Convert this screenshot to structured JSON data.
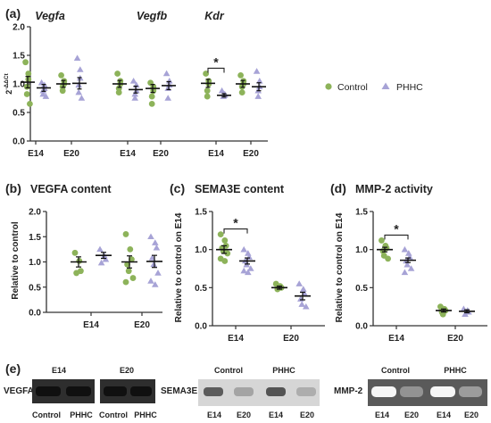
{
  "colors": {
    "control": "#8db35a",
    "phhc": "#a7a3d6",
    "axis": "#222222",
    "bar": "#000000"
  },
  "panel_labels": {
    "a": "(a)",
    "b": "(b)",
    "c": "(c)",
    "d": "(d)",
    "e": "(e)"
  },
  "legend": {
    "control": "Control",
    "phhc": "PHHC"
  },
  "chart_data": [
    {
      "id": "a",
      "type": "scatter",
      "gene_labels": [
        "Vegfa",
        "Vegfb",
        "Kdr"
      ],
      "ylabel": "2^-ΔΔCt",
      "ylabel_base": "2",
      "ylabel_sup": "-ΔΔCt",
      "ylim": [
        0,
        2.0
      ],
      "yticks": [
        "0.0",
        "0.5",
        "1.0",
        "1.5",
        "2.0"
      ],
      "categories": [
        "E14",
        "E20",
        "E14",
        "E20",
        "E14",
        "E20"
      ],
      "significance": [
        {
          "category": 4,
          "label": "*"
        }
      ],
      "series": [
        {
          "name": "Control",
          "color": "#8db35a",
          "marker": "circle",
          "values": [
            [
              1.38,
              1.18,
              1.08,
              0.95,
              0.82,
              0.65
            ],
            [
              1.15,
              1.05,
              1.0,
              0.95,
              0.88
            ],
            [
              1.18,
              1.05,
              1.0,
              0.92,
              0.85
            ],
            [
              1.02,
              0.95,
              0.88,
              0.78,
              0.65
            ],
            [
              1.18,
              1.05,
              1.0,
              0.88,
              0.78
            ],
            [
              1.15,
              1.05,
              1.0,
              0.95,
              0.85
            ]
          ],
          "mean": [
            1.03,
            1.0,
            1.0,
            0.92,
            1.01,
            1.0
          ],
          "sem": [
            0.1,
            0.06,
            0.06,
            0.07,
            0.07,
            0.06
          ]
        },
        {
          "name": "PHHC",
          "color": "#a7a3d6",
          "marker": "triangle",
          "values": [
            [
              1.02,
              0.98,
              0.92,
              0.88,
              0.82,
              0.78
            ],
            [
              1.45,
              1.25,
              1.1,
              0.98,
              0.85,
              0.75
            ],
            [
              1.05,
              0.98,
              0.88,
              0.82,
              0.75
            ],
            [
              1.18,
              1.05,
              0.98,
              0.92,
              0.75
            ],
            [
              0.88,
              0.82,
              0.8,
              0.78
            ],
            [
              1.22,
              1.05,
              0.95,
              0.88,
              0.78
            ]
          ],
          "mean": [
            0.93,
            1.01,
            0.9,
            0.97,
            0.8,
            0.95
          ],
          "sem": [
            0.06,
            0.1,
            0.06,
            0.07,
            0.03,
            0.07
          ]
        }
      ]
    },
    {
      "id": "b",
      "type": "scatter",
      "title": "VEGFA content",
      "ylabel": "Relative to control",
      "ylim": [
        0,
        2.0
      ],
      "yticks": [
        "0.0",
        "0.5",
        "1.0",
        "1.5",
        "2.0"
      ],
      "categories": [
        "E14",
        "E20"
      ],
      "series": [
        {
          "name": "Control",
          "color": "#8db35a",
          "marker": "circle",
          "values": [
            [
              1.18,
              1.02,
              0.82,
              0.78
            ],
            [
              1.55,
              1.25,
              1.05,
              0.95,
              0.82,
              0.68,
              0.6
            ]
          ],
          "mean": [
            1.0,
            1.0
          ],
          "sem": [
            0.1,
            0.12
          ]
        },
        {
          "name": "PHHC",
          "color": "#a7a3d6",
          "marker": "triangle",
          "values": [
            [
              1.25,
              1.12,
              1.05,
              0.98
            ],
            [
              1.5,
              1.38,
              1.28,
              1.08,
              0.95,
              0.78,
              0.62,
              0.55
            ]
          ],
          "mean": [
            1.13,
            1.01
          ],
          "sem": [
            0.06,
            0.12
          ]
        }
      ]
    },
    {
      "id": "c",
      "type": "scatter",
      "title": "SEMA3E content",
      "ylabel": "Relative to control on E14",
      "ylim": [
        0,
        1.5
      ],
      "yticks": [
        "0.0",
        "0.5",
        "1.0",
        "1.5"
      ],
      "categories": [
        "E14",
        "E20"
      ],
      "significance": [
        {
          "category": 0,
          "label": "*"
        }
      ],
      "series": [
        {
          "name": "Control",
          "color": "#8db35a",
          "marker": "circle",
          "values": [
            [
              1.2,
              1.12,
              1.05,
              1.02,
              0.98,
              0.95,
              0.88,
              0.85
            ],
            [
              0.55,
              0.52,
              0.5,
              0.48
            ]
          ],
          "mean": [
            1.0,
            0.5
          ],
          "sem": [
            0.05,
            0.02
          ]
        },
        {
          "name": "PHHC",
          "color": "#a7a3d6",
          "marker": "triangle",
          "values": [
            [
              1.0,
              0.95,
              0.9,
              0.85,
              0.8,
              0.75,
              0.72,
              0.7
            ],
            [
              0.55,
              0.48,
              0.42,
              0.35,
              0.28,
              0.25
            ]
          ],
          "mean": [
            0.85,
            0.39
          ],
          "sem": [
            0.04,
            0.05
          ]
        }
      ]
    },
    {
      "id": "d",
      "type": "scatter",
      "title": "MMP-2 activity",
      "ylabel": "Relative to control on E14",
      "ylim": [
        0,
        1.5
      ],
      "yticks": [
        "0.0",
        "0.5",
        "1.0",
        "1.5"
      ],
      "categories": [
        "E14",
        "E20"
      ],
      "significance": [
        {
          "category": 0,
          "label": "*"
        }
      ],
      "series": [
        {
          "name": "Control",
          "color": "#8db35a",
          "marker": "circle",
          "values": [
            [
              1.12,
              1.05,
              1.02,
              0.98,
              0.92,
              0.88
            ],
            [
              0.25,
              0.22,
              0.2,
              0.18,
              0.15
            ]
          ],
          "mean": [
            1.0,
            0.2
          ],
          "sem": [
            0.03,
            0.02
          ]
        },
        {
          "name": "PHHC",
          "color": "#a7a3d6",
          "marker": "triangle",
          "values": [
            [
              1.0,
              0.95,
              0.9,
              0.85,
              0.8,
              0.75,
              0.7
            ],
            [
              0.22,
              0.2,
              0.18,
              0.15
            ]
          ],
          "mean": [
            0.86,
            0.19
          ],
          "sem": [
            0.03,
            0.02
          ]
        }
      ]
    }
  ],
  "blots": {
    "b1": {
      "label": "VEGFA",
      "headers": [
        "E14",
        "E20"
      ],
      "lanes": [
        "Control",
        "PHHC",
        "Control",
        "PHHC"
      ]
    },
    "b2": {
      "label": "SEMA3E",
      "headers": [
        "Control",
        "PHHC"
      ],
      "lanes": [
        "E14",
        "E20",
        "E14",
        "E20"
      ],
      "intensity": [
        0.75,
        0.3,
        0.8,
        0.25
      ]
    },
    "b3": {
      "label": "MMP-2",
      "headers": [
        "Control",
        "PHHC"
      ],
      "lanes": [
        "E14",
        "E20",
        "E14",
        "E20"
      ],
      "intensity": [
        0.95,
        0.35,
        0.95,
        0.4
      ]
    }
  }
}
